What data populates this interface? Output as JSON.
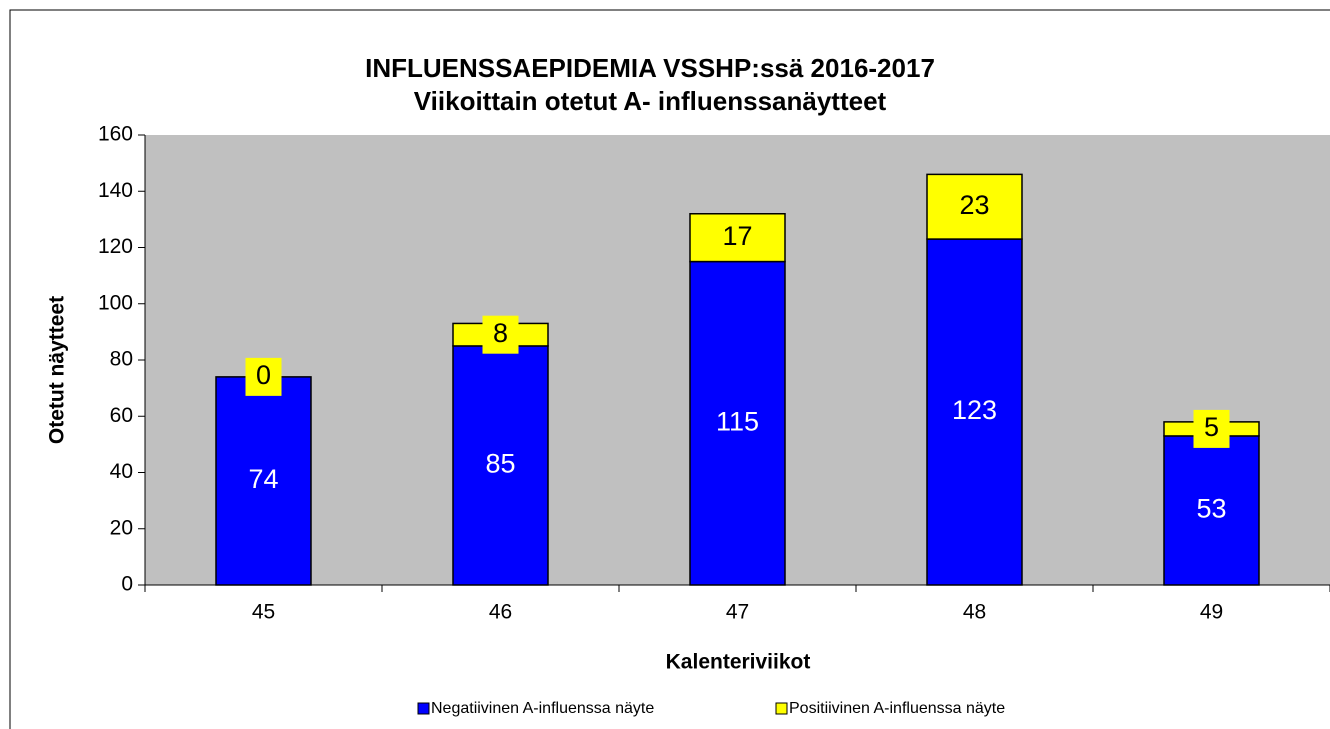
{
  "chart_data": {
    "type": "stacked_bar",
    "title": "INFLUENSSAEPIDEMIA VSSHP:ssä 2016-2017",
    "subtitle": "Viikoittain otetut A- influenssanäytteet",
    "x_label": "Kalenteriviikot",
    "y_label": "Otetut näytteet",
    "categories": [
      "45",
      "46",
      "47",
      "48",
      "49"
    ],
    "series": [
      {
        "name": "Negatiivinen A-influenssa näyte",
        "color": "#0000ff",
        "values": [
          74,
          85,
          115,
          123,
          53
        ]
      },
      {
        "name": "Positiivinen A-influenssa näyte",
        "color": "#ffff00",
        "values": [
          0,
          8,
          17,
          23,
          5
        ]
      }
    ],
    "ylim": [
      0,
      160
    ],
    "yticks": [
      0,
      20,
      40,
      60,
      80,
      100,
      120,
      140,
      160
    ],
    "plot_background": "#c0c0c0",
    "legend": "bottom"
  }
}
